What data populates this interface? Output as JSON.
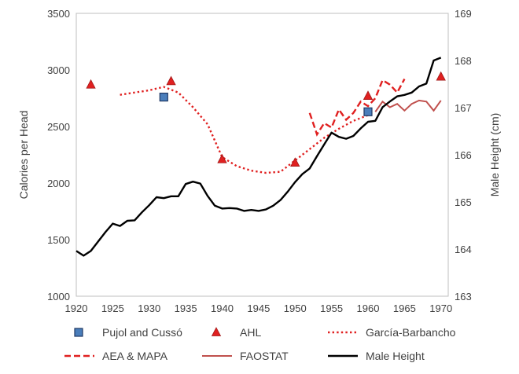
{
  "chart_data": {
    "type": "line",
    "title": "",
    "xlabel": "",
    "ylabel_left": "Calories per Head",
    "ylabel_right": "Male Height (cm)",
    "xlim": [
      1920,
      1971
    ],
    "ylim_left": [
      1000,
      3500
    ],
    "ylim_right": [
      163,
      169
    ],
    "x_ticks": [
      "1920",
      "1925",
      "1930",
      "1935",
      "1940",
      "1945",
      "1950",
      "1955",
      "1960",
      "1965",
      "1970"
    ],
    "y_left_ticks": [
      "1000",
      "1500",
      "2000",
      "2500",
      "3000",
      "3500"
    ],
    "y_right_ticks": [
      "163",
      "164",
      "165",
      "166",
      "167",
      "168",
      "169"
    ],
    "gridlines": false,
    "legend_position": "bottom",
    "series": [
      {
        "name": "Pujol and Cussó",
        "kind": "marker-square",
        "axis": "left",
        "color": "#4a7ebb",
        "edge": "#1f3864",
        "points": [
          [
            1932,
            2760
          ],
          [
            1960,
            2630
          ]
        ]
      },
      {
        "name": "AHL",
        "kind": "marker-triangle",
        "axis": "left",
        "color": "#e02020",
        "edge": "#a01818",
        "points": [
          [
            1922,
            2870
          ],
          [
            1933,
            2900
          ],
          [
            1940,
            2210
          ],
          [
            1950,
            2180
          ],
          [
            1960,
            2770
          ],
          [
            1970,
            2940
          ]
        ]
      },
      {
        "name": "García-Barbancho",
        "kind": "line-dotted",
        "axis": "left",
        "color": "#e02020",
        "points": [
          [
            1926,
            2780
          ],
          [
            1928,
            2800
          ],
          [
            1930,
            2820
          ],
          [
            1932,
            2850
          ],
          [
            1934,
            2800
          ],
          [
            1936,
            2670
          ],
          [
            1938,
            2520
          ],
          [
            1940,
            2230
          ],
          [
            1942,
            2150
          ],
          [
            1944,
            2110
          ],
          [
            1946,
            2090
          ],
          [
            1948,
            2100
          ],
          [
            1950,
            2200
          ],
          [
            1952,
            2300
          ],
          [
            1954,
            2400
          ],
          [
            1956,
            2480
          ],
          [
            1958,
            2550
          ],
          [
            1960,
            2600
          ]
        ]
      },
      {
        "name": "AEA & MAPA",
        "kind": "line-dashed",
        "axis": "left",
        "color": "#e02020",
        "points": [
          [
            1952,
            2620
          ],
          [
            1953,
            2430
          ],
          [
            1954,
            2530
          ],
          [
            1955,
            2490
          ],
          [
            1956,
            2650
          ],
          [
            1957,
            2560
          ],
          [
            1958,
            2620
          ],
          [
            1959,
            2720
          ],
          [
            1960,
            2680
          ],
          [
            1961,
            2750
          ],
          [
            1962,
            2910
          ],
          [
            1963,
            2870
          ],
          [
            1964,
            2800
          ],
          [
            1965,
            2920
          ]
        ]
      },
      {
        "name": "FAOSTAT",
        "kind": "line-solid-thin",
        "axis": "left",
        "color": "#c0504d",
        "points": [
          [
            1961,
            2630
          ],
          [
            1962,
            2720
          ],
          [
            1963,
            2670
          ],
          [
            1964,
            2700
          ],
          [
            1965,
            2640
          ],
          [
            1966,
            2700
          ],
          [
            1967,
            2730
          ],
          [
            1968,
            2720
          ],
          [
            1969,
            2640
          ],
          [
            1970,
            2730
          ]
        ]
      },
      {
        "name": "Male Height",
        "kind": "line-solid-thick",
        "axis": "right",
        "color": "#000000",
        "points": [
          [
            1920,
            163.96
          ],
          [
            1921,
            163.86
          ],
          [
            1922,
            163.96
          ],
          [
            1923,
            164.16
          ],
          [
            1924,
            164.36
          ],
          [
            1925,
            164.54
          ],
          [
            1926,
            164.49
          ],
          [
            1927,
            164.6
          ],
          [
            1928,
            164.61
          ],
          [
            1929,
            164.78
          ],
          [
            1930,
            164.93
          ],
          [
            1931,
            165.1
          ],
          [
            1932,
            165.08
          ],
          [
            1933,
            165.12
          ],
          [
            1934,
            165.12
          ],
          [
            1935,
            165.38
          ],
          [
            1936,
            165.43
          ],
          [
            1937,
            165.39
          ],
          [
            1938,
            165.13
          ],
          [
            1939,
            164.92
          ],
          [
            1940,
            164.86
          ],
          [
            1941,
            164.87
          ],
          [
            1942,
            164.86
          ],
          [
            1943,
            164.81
          ],
          [
            1944,
            164.83
          ],
          [
            1945,
            164.81
          ],
          [
            1946,
            164.84
          ],
          [
            1947,
            164.92
          ],
          [
            1948,
            165.04
          ],
          [
            1949,
            165.22
          ],
          [
            1950,
            165.42
          ],
          [
            1951,
            165.59
          ],
          [
            1952,
            165.71
          ],
          [
            1953,
            165.97
          ],
          [
            1954,
            166.22
          ],
          [
            1955,
            166.47
          ],
          [
            1956,
            166.38
          ],
          [
            1957,
            166.34
          ],
          [
            1958,
            166.4
          ],
          [
            1959,
            166.56
          ],
          [
            1960,
            166.7
          ],
          [
            1961,
            166.72
          ],
          [
            1962,
            167.01
          ],
          [
            1963,
            167.13
          ],
          [
            1964,
            167.24
          ],
          [
            1965,
            167.27
          ],
          [
            1966,
            167.32
          ],
          [
            1967,
            167.45
          ],
          [
            1968,
            167.51
          ],
          [
            1969,
            168.0
          ],
          [
            1970,
            168.06
          ]
        ]
      }
    ]
  }
}
